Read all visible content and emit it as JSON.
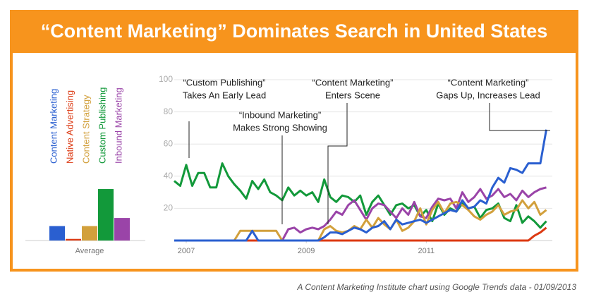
{
  "header": {
    "title": "“Content Marketing” Dominates Search in United States"
  },
  "footer": {
    "caption": "A Content Marketing Institute chart using Google Trends data - 01/09/2013"
  },
  "annotations": [
    {
      "lines": [
        "“Custom Publishing”",
        "Takes An Early Lead"
      ]
    },
    {
      "lines": [
        "“Inbound Marketing”",
        "Makes Strong Showing"
      ]
    },
    {
      "lines": [
        "“Content Marketing”",
        "Enters Scene"
      ]
    },
    {
      "lines": [
        "“Content Marketing”",
        "Gaps Up, Increases Lead"
      ]
    }
  ],
  "chart_data": [
    {
      "type": "bar",
      "xlabel": "Average",
      "categories": [
        "Content Marketing",
        "Native Advertising",
        "Content Strategy",
        "Custom Publishing",
        "Inbound Marketing"
      ],
      "values": [
        9,
        1,
        9,
        32,
        14
      ],
      "colors": [
        "#2a5fd0",
        "#dc3912",
        "#d2a03c",
        "#12993a",
        "#9a44a8"
      ],
      "ylim": [
        0,
        100
      ]
    },
    {
      "type": "line",
      "x": [
        2006.8,
        2006.9,
        2007.0,
        2007.1,
        2007.2,
        2007.3,
        2007.4,
        2007.5,
        2007.6,
        2007.7,
        2007.8,
        2007.9,
        2008.0,
        2008.1,
        2008.2,
        2008.3,
        2008.4,
        2008.5,
        2008.6,
        2008.7,
        2008.8,
        2008.9,
        2009.0,
        2009.1,
        2009.2,
        2009.3,
        2009.4,
        2009.5,
        2009.6,
        2009.7,
        2009.8,
        2009.9,
        2010.0,
        2010.1,
        2010.2,
        2010.3,
        2010.4,
        2010.5,
        2010.6,
        2010.7,
        2010.8,
        2010.9,
        2011.0,
        2011.1,
        2011.2,
        2011.3,
        2011.4,
        2011.5,
        2011.6,
        2011.7,
        2011.8,
        2011.9,
        2012.0,
        2012.1,
        2012.2,
        2012.3,
        2012.4,
        2012.5,
        2012.6,
        2012.7,
        2012.8,
        2012.9,
        2013.0
      ],
      "series": [
        {
          "color": "#12993a",
          "values": [
            37,
            34,
            47,
            34,
            42,
            42,
            33,
            33,
            48,
            40,
            35,
            31,
            26,
            37,
            32,
            38,
            30,
            28,
            25,
            33,
            28,
            31,
            28,
            30,
            24,
            38,
            27,
            24,
            28,
            27,
            24,
            28,
            16,
            24,
            28,
            22,
            16,
            22,
            23,
            20,
            22,
            15,
            19,
            12,
            23,
            16,
            20,
            18,
            23,
            20,
            21,
            14,
            19,
            20,
            23,
            14,
            12,
            22,
            11,
            15,
            12,
            8,
            12
          ]
        },
        {
          "color": "#9a44a8",
          "values": [
            0,
            0,
            0,
            0,
            0,
            0,
            0,
            0,
            0,
            0,
            0,
            0,
            0,
            0,
            0,
            0,
            0,
            0,
            0,
            7,
            8,
            5,
            7,
            8,
            7,
            9,
            13,
            18,
            16,
            22,
            25,
            19,
            13,
            20,
            23,
            22,
            18,
            14,
            20,
            16,
            24,
            15,
            14,
            21,
            26,
            25,
            26,
            20,
            30,
            24,
            27,
            32,
            26,
            28,
            32,
            27,
            29,
            25,
            31,
            27,
            30,
            32,
            33
          ]
        },
        {
          "color": "#d2a03c",
          "values": [
            0,
            0,
            0,
            0,
            0,
            0,
            0,
            0,
            0,
            0,
            0,
            6,
            6,
            6,
            6,
            6,
            6,
            6,
            0,
            0,
            0,
            0,
            0,
            0,
            0,
            7,
            9,
            6,
            5,
            6,
            9,
            7,
            13,
            8,
            14,
            10,
            7,
            13,
            6,
            8,
            12,
            20,
            10,
            19,
            24,
            17,
            23,
            24,
            22,
            19,
            15,
            13,
            16,
            18,
            22,
            16,
            18,
            19,
            25,
            20,
            24,
            16,
            19
          ]
        },
        {
          "color": "#dc3912",
          "values": [
            0,
            0,
            0,
            0,
            0,
            0,
            0,
            0,
            0,
            0,
            0,
            0,
            0,
            0,
            0,
            0,
            0,
            0,
            0,
            0,
            0,
            0,
            0,
            0,
            0,
            0,
            0,
            0,
            0,
            0,
            0,
            0,
            0,
            0,
            0,
            0,
            0,
            0,
            0,
            0,
            0,
            0,
            0,
            0,
            0,
            0,
            0,
            0,
            0,
            0,
            0,
            0,
            0,
            0,
            0,
            0,
            0,
            0,
            0,
            0,
            3,
            5,
            8
          ]
        },
        {
          "color": "#2a5fd0",
          "values": [
            0,
            0,
            0,
            0,
            0,
            0,
            0,
            0,
            0,
            0,
            0,
            0,
            0,
            6,
            0,
            0,
            0,
            0,
            0,
            0,
            0,
            0,
            0,
            0,
            0,
            2,
            5,
            5,
            4,
            6,
            8,
            7,
            5,
            8,
            9,
            12,
            7,
            13,
            10,
            11,
            12,
            13,
            11,
            13,
            15,
            17,
            19,
            18,
            25,
            20,
            21,
            25,
            23,
            33,
            39,
            36,
            45,
            44,
            42,
            48,
            48,
            48,
            69
          ]
        }
      ],
      "xlim": [
        2006.8,
        2013.1
      ],
      "xticks": [
        2007,
        2009,
        2011
      ],
      "ylim": [
        0,
        100
      ],
      "yticks": [
        20,
        40,
        60,
        80,
        100
      ],
      "grid": true
    }
  ]
}
